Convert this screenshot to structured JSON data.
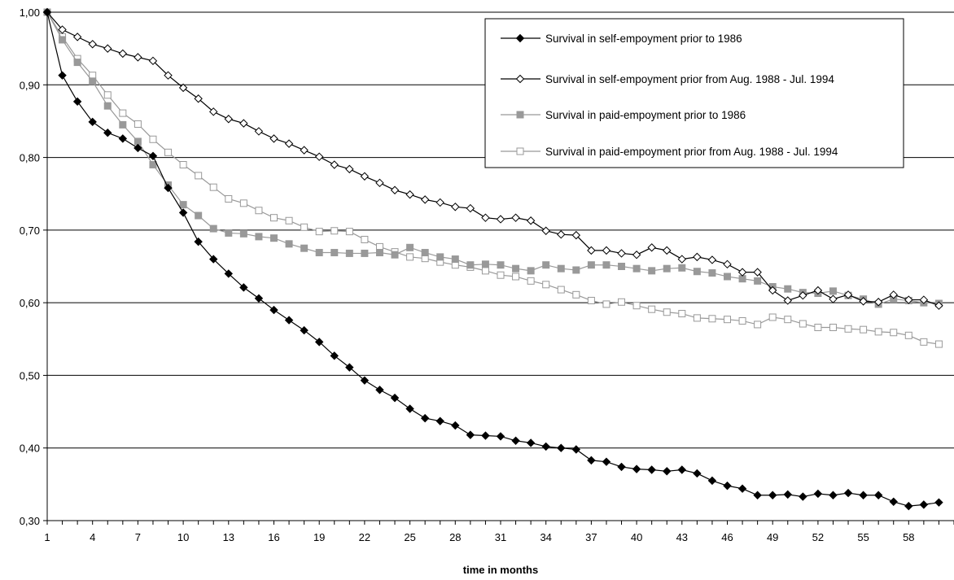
{
  "chart_data": {
    "type": "line",
    "title": "",
    "xlabel": "time in months",
    "ylabel": "",
    "xlim": [
      1,
      61
    ],
    "ylim": [
      0.3,
      1.0
    ],
    "y_ticks": [
      "0,30",
      "0,40",
      "0,50",
      "0,60",
      "0,70",
      "0,80",
      "0,90",
      "1,00"
    ],
    "y_tick_values": [
      0.3,
      0.4,
      0.5,
      0.6,
      0.7,
      0.8,
      0.9,
      1.0
    ],
    "x_ticks": [
      "1",
      "4",
      "7",
      "10",
      "13",
      "16",
      "19",
      "22",
      "25",
      "28",
      "31",
      "34",
      "37",
      "40",
      "43",
      "46",
      "49",
      "52",
      "55",
      "58"
    ],
    "x_tick_values": [
      1,
      4,
      7,
      10,
      13,
      16,
      19,
      22,
      25,
      28,
      31,
      34,
      37,
      40,
      43,
      46,
      49,
      52,
      55,
      58
    ],
    "grid": "horizontal",
    "legend_position": "top-right",
    "series": [
      {
        "name": "Survival in self-empoyment prior to 1986",
        "color": "#000000",
        "marker": "diamond-filled",
        "values": [
          1.0,
          0.913,
          0.877,
          0.849,
          0.834,
          0.826,
          0.813,
          0.802,
          0.758,
          0.724,
          0.684,
          0.66,
          0.64,
          0.621,
          0.606,
          0.59,
          0.576,
          0.562,
          0.546,
          0.527,
          0.511,
          0.493,
          0.48,
          0.469,
          0.454,
          0.441,
          0.437,
          0.431,
          0.418,
          0.417,
          0.416,
          0.41,
          0.407,
          0.402,
          0.4,
          0.398,
          0.383,
          0.381,
          0.374,
          0.371,
          0.37,
          0.368,
          0.37,
          0.365,
          0.355,
          0.348,
          0.344,
          0.335,
          0.335,
          0.336,
          0.333,
          0.337,
          0.335,
          0.338,
          0.335,
          0.335,
          0.326,
          0.32,
          0.322,
          0.325
        ]
      },
      {
        "name": "Survival in self-empoyment prior from Aug. 1988 - Jul. 1994",
        "color": "#000000",
        "marker": "diamond-open",
        "values": [
          1.0,
          0.976,
          0.966,
          0.956,
          0.95,
          0.943,
          0.938,
          0.933,
          0.913,
          0.896,
          0.881,
          0.863,
          0.853,
          0.847,
          0.836,
          0.826,
          0.819,
          0.81,
          0.801,
          0.79,
          0.784,
          0.774,
          0.765,
          0.755,
          0.749,
          0.742,
          0.738,
          0.732,
          0.73,
          0.717,
          0.715,
          0.717,
          0.713,
          0.699,
          0.694,
          0.693,
          0.672,
          0.672,
          0.668,
          0.666,
          0.676,
          0.672,
          0.66,
          0.663,
          0.659,
          0.653,
          0.642,
          0.642,
          0.617,
          0.603,
          0.61,
          0.617,
          0.605,
          0.611,
          0.602,
          0.601,
          0.611,
          0.604,
          0.604,
          0.596
        ]
      },
      {
        "name": "Survival in paid-empoyment prior to 1986",
        "color": "#999999",
        "marker": "square-filled",
        "values": [
          1.0,
          0.962,
          0.931,
          0.905,
          0.871,
          0.845,
          0.822,
          0.79,
          0.762,
          0.735,
          0.72,
          0.702,
          0.696,
          0.695,
          0.691,
          0.689,
          0.681,
          0.675,
          0.669,
          0.669,
          0.668,
          0.668,
          0.669,
          0.666,
          0.676,
          0.669,
          0.663,
          0.66,
          0.652,
          0.653,
          0.652,
          0.647,
          0.644,
          0.652,
          0.647,
          0.645,
          0.652,
          0.652,
          0.65,
          0.647,
          0.644,
          0.647,
          0.648,
          0.643,
          0.641,
          0.636,
          0.633,
          0.63,
          0.622,
          0.619,
          0.614,
          0.613,
          0.616,
          0.61,
          0.605,
          0.598,
          0.605,
          0.603,
          0.6,
          0.599
        ]
      },
      {
        "name": "Survival in paid-empoyment prior from Aug. 1988 - Jul. 1994",
        "color": "#999999",
        "marker": "square-open",
        "values": [
          1.0,
          0.966,
          0.936,
          0.913,
          0.886,
          0.861,
          0.846,
          0.825,
          0.807,
          0.79,
          0.775,
          0.759,
          0.743,
          0.737,
          0.727,
          0.717,
          0.713,
          0.704,
          0.698,
          0.699,
          0.698,
          0.687,
          0.677,
          0.67,
          0.663,
          0.661,
          0.656,
          0.652,
          0.649,
          0.644,
          0.638,
          0.636,
          0.63,
          0.625,
          0.618,
          0.611,
          0.603,
          0.598,
          0.601,
          0.596,
          0.591,
          0.587,
          0.585,
          0.579,
          0.578,
          0.577,
          0.575,
          0.57,
          0.58,
          0.577,
          0.571,
          0.566,
          0.566,
          0.564,
          0.563,
          0.56,
          0.559,
          0.555,
          0.546,
          0.543
        ]
      }
    ]
  }
}
